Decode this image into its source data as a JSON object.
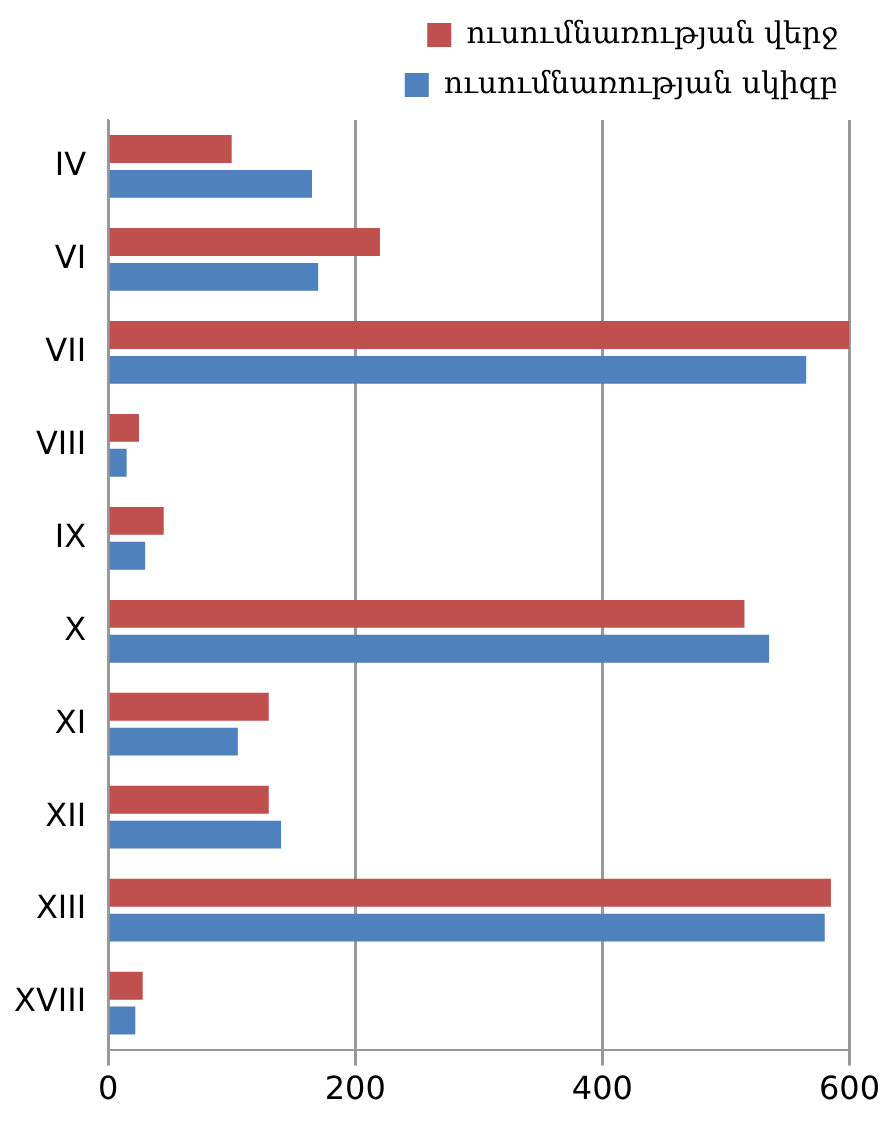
{
  "chart_data": {
    "type": "bar",
    "orientation": "horizontal",
    "categories": [
      "IV",
      "VI",
      "VII",
      "VIII",
      "IX",
      "X",
      "XI",
      "XII",
      "XIII",
      "XVIII"
    ],
    "series": [
      {
        "name": "ուսումնառության վերջ",
        "color": "#c0504d",
        "values": [
          100,
          220,
          600,
          25,
          45,
          515,
          130,
          130,
          585,
          28
        ]
      },
      {
        "name": "ուսումնառության սկիզբ",
        "color": "#4f81bd",
        "values": [
          165,
          170,
          565,
          15,
          30,
          535,
          105,
          140,
          580,
          22
        ]
      }
    ],
    "xlim": [
      0,
      600
    ],
    "xticks": [
      0,
      200,
      400,
      600
    ],
    "grid": "x",
    "legend": "top right"
  }
}
